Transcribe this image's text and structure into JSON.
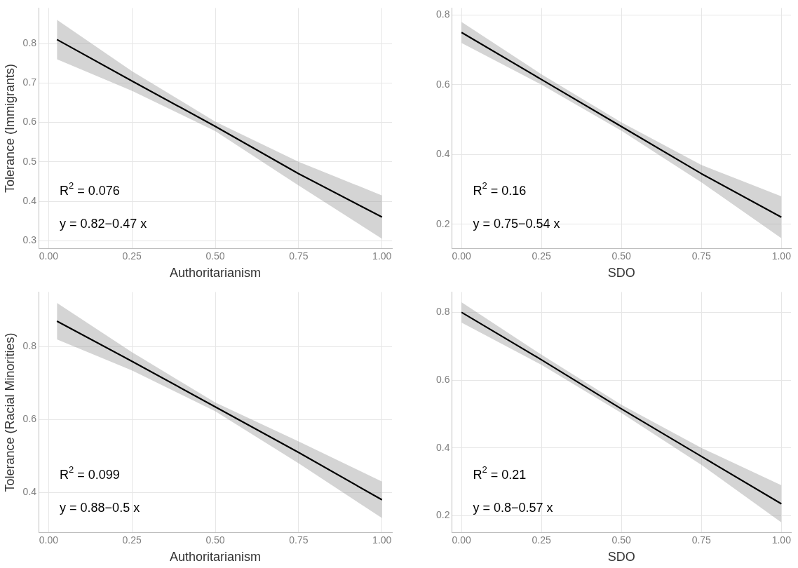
{
  "chart_data": [
    {
      "type": "line",
      "xlabel": "Authoritarianism",
      "ylabel": "Tolerance (Immigrants)",
      "xlim": [
        -0.03,
        1.03
      ],
      "xticks": [
        {
          "value": 0,
          "label": "0.00"
        },
        {
          "value": 0.25,
          "label": "0.25"
        },
        {
          "value": 0.5,
          "label": "0.50"
        },
        {
          "value": 0.75,
          "label": "0.75"
        },
        {
          "value": 1,
          "label": "1.00"
        }
      ],
      "ylim": [
        0.28,
        0.89
      ],
      "yticks": [
        0.3,
        0.4,
        0.5,
        0.6,
        0.7,
        0.8
      ],
      "grid": true,
      "legend": false,
      "marker": "none",
      "line_style": "solid",
      "annotations": [
        "R$^{2}$ = 0.076",
        "y = 0.82−0.47 x"
      ],
      "series": [
        {
          "color": "#000000",
          "x": [
            0.025,
            0.25,
            0.5,
            0.75,
            1.0
          ],
          "values": [
            0.81,
            0.705,
            0.59,
            0.47,
            0.36
          ],
          "lower": [
            0.76,
            0.68,
            0.578,
            0.44,
            0.305
          ],
          "upper": [
            0.86,
            0.73,
            0.602,
            0.5,
            0.415
          ]
        }
      ]
    },
    {
      "type": "line",
      "xlabel": "SDO",
      "xlim": [
        -0.03,
        1.03
      ],
      "xticks": [
        {
          "value": 0,
          "label": "0.00"
        },
        {
          "value": 0.25,
          "label": "0.25"
        },
        {
          "value": 0.5,
          "label": "0.50"
        },
        {
          "value": 0.75,
          "label": "0.75"
        },
        {
          "value": 1,
          "label": "1.00"
        }
      ],
      "ylim": [
        0.13,
        0.82
      ],
      "yticks": [
        0.2,
        0.4,
        0.6,
        0.8
      ],
      "grid": true,
      "legend": false,
      "marker": "none",
      "line_style": "solid",
      "annotations": [
        "R$^{2}$ = 0.16",
        "y = 0.75−0.54 x"
      ],
      "series": [
        {
          "color": "#000000",
          "x": [
            0,
            0.25,
            0.5,
            0.75,
            1.0
          ],
          "values": [
            0.75,
            0.615,
            0.48,
            0.345,
            0.22
          ],
          "lower": [
            0.72,
            0.6,
            0.468,
            0.32,
            0.16
          ],
          "upper": [
            0.78,
            0.63,
            0.492,
            0.37,
            0.28
          ]
        }
      ]
    },
    {
      "type": "line",
      "xlabel": "Authoritarianism",
      "ylabel": "Tolerance (Racial Minorities)",
      "xlim": [
        -0.03,
        1.03
      ],
      "xticks": [
        {
          "value": 0,
          "label": "0.00"
        },
        {
          "value": 0.25,
          "label": "0.25"
        },
        {
          "value": 0.5,
          "label": "0.50"
        },
        {
          "value": 0.75,
          "label": "0.75"
        },
        {
          "value": 1,
          "label": "1.00"
        }
      ],
      "ylim": [
        0.29,
        0.95
      ],
      "yticks": [
        0.4,
        0.6,
        0.8
      ],
      "grid": true,
      "legend": false,
      "marker": "none",
      "line_style": "solid",
      "annotations": [
        "R$^{2}$ = 0.099",
        "y = 0.88−0.5 x"
      ],
      "series": [
        {
          "color": "#000000",
          "x": [
            0.025,
            0.25,
            0.5,
            0.75,
            1.0
          ],
          "values": [
            0.87,
            0.76,
            0.635,
            0.51,
            0.38
          ],
          "lower": [
            0.82,
            0.735,
            0.623,
            0.48,
            0.33
          ],
          "upper": [
            0.92,
            0.785,
            0.647,
            0.54,
            0.43
          ]
        }
      ]
    },
    {
      "type": "line",
      "xlabel": "SDO",
      "xlim": [
        -0.03,
        1.03
      ],
      "xticks": [
        {
          "value": 0,
          "label": "0.00"
        },
        {
          "value": 0.25,
          "label": "0.25"
        },
        {
          "value": 0.5,
          "label": "0.50"
        },
        {
          "value": 0.75,
          "label": "0.75"
        },
        {
          "value": 1,
          "label": "1.00"
        }
      ],
      "ylim": [
        0.15,
        0.86
      ],
      "yticks": [
        0.2,
        0.4,
        0.6,
        0.8
      ],
      "grid": true,
      "legend": false,
      "marker": "none",
      "line_style": "solid",
      "annotations": [
        "R$^{2}$ = 0.21",
        "y = 0.8−0.57 x"
      ],
      "series": [
        {
          "color": "#000000",
          "x": [
            0,
            0.25,
            0.5,
            0.75,
            1.0
          ],
          "values": [
            0.8,
            0.66,
            0.515,
            0.375,
            0.235
          ],
          "lower": [
            0.77,
            0.645,
            0.503,
            0.35,
            0.18
          ],
          "upper": [
            0.83,
            0.675,
            0.527,
            0.4,
            0.29
          ]
        }
      ]
    }
  ]
}
